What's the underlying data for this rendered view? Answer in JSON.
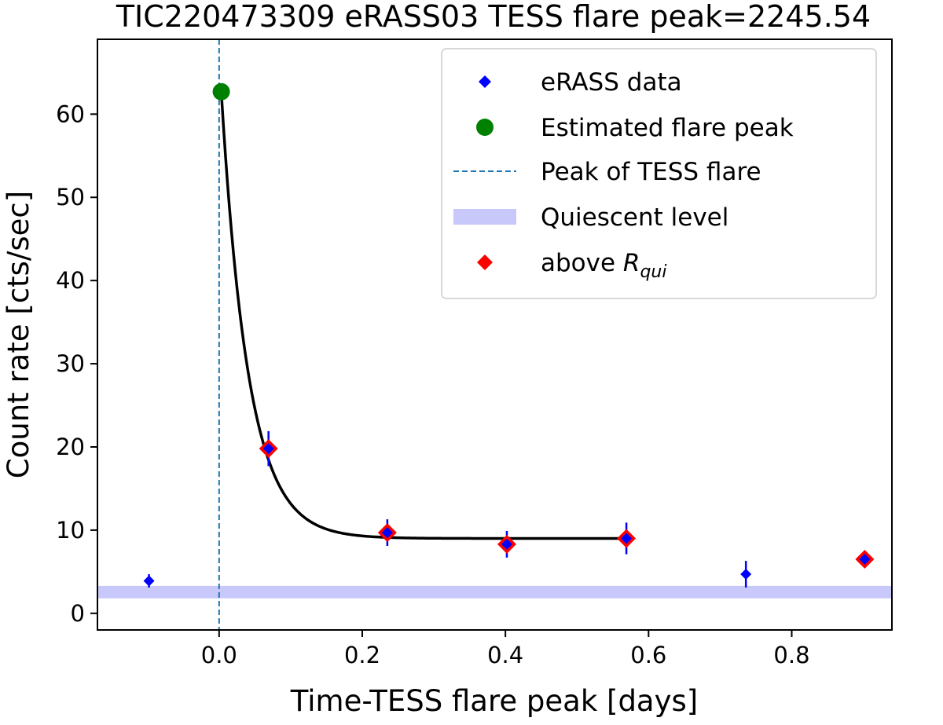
{
  "chart_data": {
    "type": "scatter",
    "title": "TIC220473309 eRASS03 TESS flare peak=2245.54",
    "xlabel": "Time-TESS flare peak [days]",
    "ylabel": "Count rate [cts/sec]",
    "xlim": [
      -0.17,
      0.94
    ],
    "ylim": [
      -2,
      69
    ],
    "xticks": [
      0.0,
      0.2,
      0.4,
      0.6,
      0.8
    ],
    "xtick_labels": [
      "0.0",
      "0.2",
      "0.4",
      "0.6",
      "0.8"
    ],
    "yticks": [
      0,
      10,
      20,
      30,
      40,
      50,
      60
    ],
    "ytick_labels": [
      "0",
      "10",
      "20",
      "30",
      "40",
      "50",
      "60"
    ],
    "grid": false,
    "legend_position": "top-right",
    "legend": [
      {
        "label": "eRASS data",
        "marker": "diamond",
        "color": "#0000ff"
      },
      {
        "label": "Estimated flare peak",
        "marker": "circle",
        "color": "#008000"
      },
      {
        "label": "Peak of TESS flare",
        "marker": "dashed-line",
        "color": "#1f77b4"
      },
      {
        "label": "Quiescent level",
        "marker": "band",
        "color": "#c8c8fa"
      },
      {
        "label": "above R",
        "label_sub": "qui",
        "marker": "diamond",
        "color": "#ff0000"
      }
    ],
    "series": [
      {
        "name": "eRASS data",
        "color": "#0000ff",
        "points": [
          {
            "x": -0.098,
            "y": 3.9,
            "err": 0.8
          },
          {
            "x": 0.069,
            "y": 19.8,
            "err": 2.1
          },
          {
            "x": 0.235,
            "y": 9.7,
            "err": 1.6
          },
          {
            "x": 0.402,
            "y": 8.3,
            "err": 1.6
          },
          {
            "x": 0.569,
            "y": 9.0,
            "err": 1.9
          },
          {
            "x": 0.736,
            "y": 4.7,
            "err": 1.6
          },
          {
            "x": 0.902,
            "y": 6.5,
            "err": 0.7
          }
        ]
      },
      {
        "name": "above R_qui",
        "color": "#ff0000",
        "points": [
          {
            "x": 0.069,
            "y": 19.8
          },
          {
            "x": 0.235,
            "y": 9.7
          },
          {
            "x": 0.402,
            "y": 8.3
          },
          {
            "x": 0.569,
            "y": 9.0
          },
          {
            "x": 0.902,
            "y": 6.5
          }
        ]
      },
      {
        "name": "Estimated flare peak",
        "color": "#008000",
        "points": [
          {
            "x": 0.003,
            "y": 62.7
          }
        ]
      }
    ],
    "flare_peak_x": 0.0,
    "fit_curve": {
      "color": "#000000",
      "x_start": 0.003,
      "x_end": 0.569,
      "peak": 62.7,
      "baseline": 9.0,
      "decay_days": 0.038
    },
    "quiescent_level": {
      "y_low": 1.8,
      "y_high": 3.3,
      "color": "#c8c8fa"
    }
  }
}
